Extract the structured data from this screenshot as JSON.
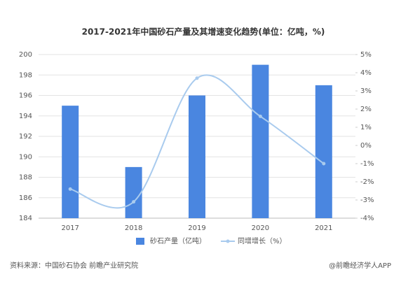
{
  "chart_data": {
    "type": "bar",
    "title": "2017-2021年中国砂石产量及其增速变化趋势(单位：亿吨，%)",
    "categories": [
      "2017",
      "2018",
      "2019",
      "2020",
      "2021"
    ],
    "series": [
      {
        "name": "砂石产量（亿吨）",
        "type": "bar",
        "color": "#4a86e0",
        "values": [
          195,
          189,
          196,
          199,
          197
        ]
      },
      {
        "name": "同增增长（%）",
        "type": "line",
        "axis": "y2",
        "color": "#a9cbee",
        "values": [
          -2.4,
          -3.1,
          3.7,
          1.6,
          -1.0
        ]
      }
    ],
    "ylim": [
      184,
      200
    ],
    "yticks": [
      184,
      186,
      188,
      190,
      192,
      194,
      196,
      198,
      200
    ],
    "y2lim": [
      -4,
      5
    ],
    "y2ticks": [
      {
        "value": -4,
        "label": "-4%"
      },
      {
        "value": -3,
        "label": "-3%"
      },
      {
        "value": -2,
        "label": "-2%"
      },
      {
        "value": -1,
        "label": "-1%"
      },
      {
        "value": 0,
        "label": "0%"
      },
      {
        "value": 1,
        "label": "1%"
      },
      {
        "value": 2,
        "label": "2%"
      },
      {
        "value": 3,
        "label": "3%"
      },
      {
        "value": 4,
        "label": "4%"
      },
      {
        "value": 5,
        "label": "5%"
      }
    ],
    "grid": true,
    "source": "资料来源：中国砂石协会 前瞻产业研究院",
    "credit": "@前瞻经济学人APP"
  }
}
